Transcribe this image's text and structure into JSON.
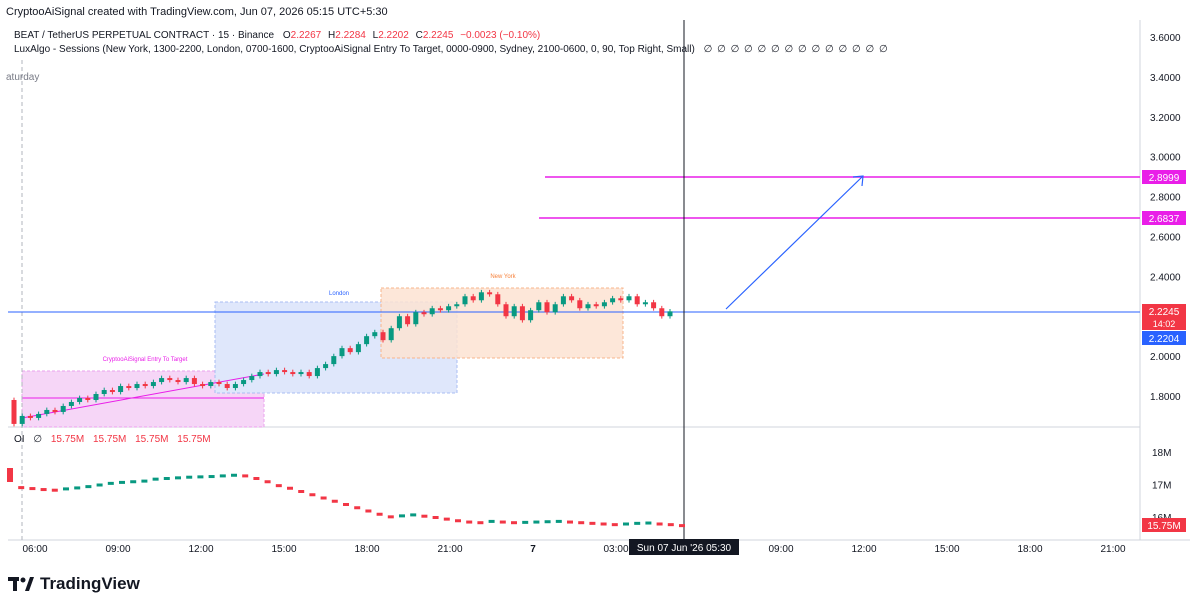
{
  "header": {
    "credit": "CryptooAiSignal created with TradingView.com, Jun 07, 2026 05:15 UTC+5:30"
  },
  "legend": {
    "symbol": "BEAT / TetherUS PERPETUAL CONTRACT · 15 · Binance",
    "o_label": "O",
    "o": "2.2267",
    "h_label": "H",
    "h": "2.2284",
    "l_label": "L",
    "l": "2.2202",
    "c_label": "C",
    "c": "2.2245",
    "change": "−0.0023 (−0.10%)",
    "indicator": "LuxAlgo - Sessions (New York, 1300-2200, London, 0700-1600, CryptooAiSignal  Entry To Target, 0000-0900, Sydney, 2100-0600, 0, 90, Top Right, Small)",
    "indicator_values": "∅ ∅ ∅ ∅ ∅ ∅ ∅ ∅ ∅ ∅ ∅ ∅ ∅ ∅"
  },
  "weekday_label": "aturday",
  "oi_legend": {
    "label": "OI",
    "empty": "∅",
    "values": [
      "15.75M",
      "15.75M",
      "15.75M",
      "15.75M"
    ]
  },
  "sessions": {
    "entry_label": "CryptooAiSignal  Entry To Target",
    "london_label": "London",
    "newyork_label": "New York"
  },
  "price_axis": {
    "ticks": [
      "3.6000",
      "3.4000",
      "3.2000",
      "3.0000",
      "2.8000",
      "2.6000",
      "2.4000",
      "2.2000",
      "2.0000",
      "1.8000"
    ],
    "tick_values": [
      3.6,
      3.4,
      3.2,
      3.0,
      2.8,
      2.6,
      2.4,
      2.2,
      2.0,
      1.8
    ],
    "tags": {
      "target2": "2.8999",
      "target1": "2.6837",
      "last": "2.2245",
      "countdown": "14:02",
      "crosshair": "2.2204"
    }
  },
  "oi_axis": {
    "ticks": [
      "18M",
      "17M",
      "16M"
    ],
    "last": "15.75M"
  },
  "time_axis": {
    "ticks": [
      "06:00",
      "09:00",
      "12:00",
      "15:00",
      "18:00",
      "21:00",
      "7",
      "03:00",
      "09:00",
      "12:00",
      "15:00",
      "18:00",
      "21:00"
    ],
    "crosshair_label": "Sun 07 Jun '26   05:30"
  },
  "colors": {
    "up": "#089981",
    "down": "#f23645",
    "magenta": "#e91ee8",
    "blue_line": "#2962ff",
    "entry_fill": "#f6d6f7",
    "london_fill": "#dfe7fb",
    "ny_fill": "#fde3d2"
  },
  "chart_data": {
    "type": "candlestick",
    "timeframe": "15",
    "ohlc": {
      "open": 2.2267,
      "high": 2.2284,
      "low": 2.2202,
      "close": 2.2245
    },
    "target_levels": [
      2.8999,
      2.6837
    ],
    "entry_level": 2.2245,
    "projection": {
      "from": 2.22,
      "to": 2.8999
    },
    "close_series": [
      1.66,
      1.7,
      1.69,
      1.71,
      1.73,
      1.72,
      1.75,
      1.77,
      1.79,
      1.78,
      1.81,
      1.83,
      1.82,
      1.85,
      1.84,
      1.86,
      1.85,
      1.87,
      1.89,
      1.88,
      1.87,
      1.89,
      1.86,
      1.85,
      1.87,
      1.86,
      1.84,
      1.86,
      1.88,
      1.9,
      1.92,
      1.91,
      1.93,
      1.92,
      1.91,
      1.92,
      1.9,
      1.94,
      1.96,
      2.0,
      2.04,
      2.02,
      2.06,
      2.1,
      2.12,
      2.08,
      2.14,
      2.2,
      2.16,
      2.22,
      2.21,
      2.24,
      2.23,
      2.25,
      2.26,
      2.3,
      2.28,
      2.32,
      2.31,
      2.26,
      2.2,
      2.25,
      2.18,
      2.23,
      2.27,
      2.22,
      2.26,
      2.3,
      2.28,
      2.24,
      2.26,
      2.25,
      2.27,
      2.29,
      2.28,
      2.3,
      2.26,
      2.27,
      2.24,
      2.2,
      2.2245
    ],
    "oi_series_m": [
      17.2,
      16.92,
      16.89,
      16.86,
      16.84,
      16.88,
      16.91,
      16.95,
      17.0,
      17.05,
      17.08,
      17.1,
      17.12,
      17.18,
      17.2,
      17.22,
      17.24,
      17.25,
      17.26,
      17.28,
      17.3,
      17.28,
      17.2,
      17.1,
      16.98,
      16.9,
      16.8,
      16.7,
      16.6,
      16.5,
      16.4,
      16.3,
      16.2,
      16.1,
      16.02,
      16.05,
      16.08,
      16.04,
      16.0,
      15.95,
      15.9,
      15.86,
      15.84,
      15.88,
      15.86,
      15.84,
      15.85,
      15.86,
      15.87,
      15.88,
      15.86,
      15.84,
      15.82,
      15.8,
      15.78,
      15.8,
      15.82,
      15.83,
      15.8,
      15.78,
      15.75
    ]
  }
}
